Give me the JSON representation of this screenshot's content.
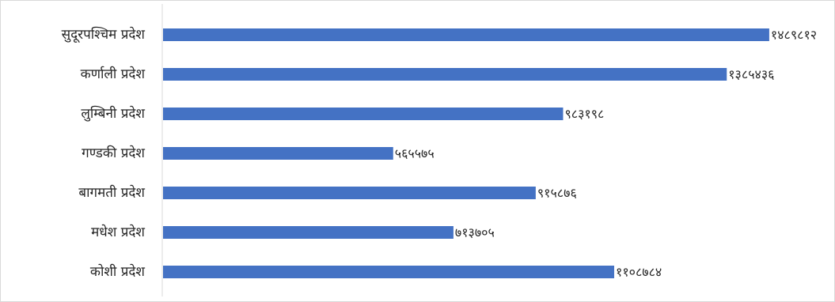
{
  "chart_data": {
    "type": "bar",
    "orientation": "horizontal",
    "title": "",
    "xlabel": "",
    "ylabel": "",
    "categories": [
      "सुदूरपश्चिम प्रदेश",
      "कर्णाली प्रदेश",
      "लुम्बिनी प्रदेश",
      "गण्डकी प्रदेश",
      "बागमती प्रदेश",
      "मधेश प्रदेश",
      "कोशी प्रदेश"
    ],
    "values": [
      1489812,
      1385436,
      983198,
      565575,
      915876,
      713705,
      1108784
    ],
    "value_labels": [
      "१४८९८१२",
      "१३८५४३६",
      "९८३१९८",
      "५६५५७५",
      "९१५८७६",
      "७१३७०५",
      "११०८७८४"
    ],
    "xlim": [
      0,
      1490000
    ],
    "grid": false,
    "legend": "none",
    "bar_color": "#4472C4"
  }
}
